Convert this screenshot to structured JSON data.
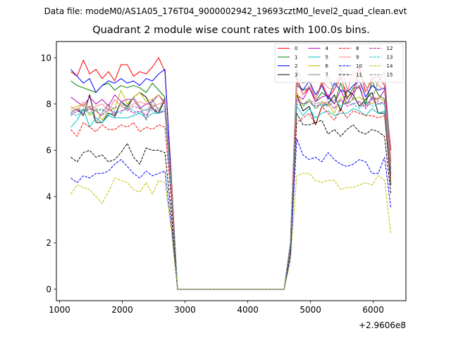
{
  "figure": {
    "suptitle": "Data file: modeM0/AS1A05_176T04_9000002942_19693cztM0_level2_quad_clean.evt"
  },
  "chart_data": {
    "type": "line",
    "title": "Quadrant 2 module wise count rates with 100.0s bins.",
    "xlabel": "",
    "ylabel": "",
    "x_offset_label": "+2.9606e8",
    "xlim": [
      950,
      6520
    ],
    "ylim": [
      -0.5,
      10.7
    ],
    "xticks": [
      1000,
      2000,
      3000,
      4000,
      5000,
      6000
    ],
    "yticks": [
      0,
      2,
      4,
      6,
      8,
      10
    ],
    "grid": false,
    "legend": {
      "placement": "top-right",
      "ncol": 4
    },
    "x_left": [
      1180,
      1280,
      1380,
      1480,
      1580,
      1680,
      1780,
      1880,
      1980,
      2080,
      2180,
      2280,
      2380,
      2480,
      2580,
      2680,
      2780,
      2880
    ],
    "x_mid": [
      2980,
      3080,
      3180,
      3280,
      3380,
      3480,
      3580,
      3680,
      3780,
      3880,
      3980,
      4080,
      4180,
      4280,
      4380,
      4480
    ],
    "x_right": [
      4580,
      4680,
      4780,
      4880,
      4980,
      5080,
      5180,
      5280,
      5380,
      5480,
      5580,
      5680,
      5780,
      5880,
      5980,
      6080,
      6180,
      6280
    ],
    "series": [
      {
        "name": "0",
        "color": "#ff0000",
        "dash": "solid",
        "left": [
          9.4,
          9.2,
          9.9,
          9.3,
          9.5,
          9.1,
          9.4,
          9.0,
          9.7,
          9.7,
          9.2,
          9.4,
          9.3,
          9.6,
          10.0,
          9.4,
          5.0,
          0.0
        ],
        "right": [
          0.0,
          2.0,
          9.2,
          8.4,
          8.7,
          8.2,
          8.9,
          8.3,
          8.6,
          9.2,
          8.3,
          8.5,
          9.6,
          8.5,
          9.1,
          9.2,
          8.8,
          6.0
        ]
      },
      {
        "name": "1",
        "color": "#008000",
        "dash": "solid",
        "left": [
          9.0,
          8.8,
          8.7,
          8.6,
          8.5,
          8.8,
          8.9,
          8.6,
          8.8,
          8.7,
          8.8,
          8.7,
          8.5,
          8.9,
          8.6,
          8.3,
          4.5,
          0.0
        ],
        "right": [
          0.0,
          2.0,
          8.8,
          8.6,
          8.7,
          8.1,
          8.5,
          8.3,
          8.0,
          8.9,
          8.2,
          8.7,
          8.7,
          8.0,
          9.0,
          8.4,
          8.2,
          5.0
        ]
      },
      {
        "name": "2",
        "color": "#0000ff",
        "dash": "solid",
        "left": [
          9.5,
          9.2,
          8.9,
          9.1,
          8.5,
          8.8,
          9.0,
          8.9,
          9.1,
          8.9,
          9.0,
          8.8,
          9.1,
          9.0,
          9.3,
          9.5,
          4.8,
          0.0
        ],
        "right": [
          0.0,
          2.0,
          8.9,
          8.6,
          9.0,
          8.4,
          8.8,
          8.2,
          8.9,
          8.6,
          8.5,
          8.8,
          9.0,
          8.3,
          8.8,
          8.6,
          8.7,
          5.5
        ]
      },
      {
        "name": "3",
        "color": "#000000",
        "dash": "solid",
        "left": [
          7.6,
          7.8,
          7.5,
          8.4,
          7.2,
          7.2,
          7.6,
          7.5,
          8.1,
          7.9,
          8.3,
          8.5,
          8.3,
          7.8,
          7.6,
          8.2,
          4.6,
          0.0
        ],
        "right": [
          0.0,
          1.9,
          8.4,
          7.7,
          7.9,
          7.1,
          7.9,
          8.0,
          8.4,
          7.7,
          8.6,
          8.4,
          7.9,
          8.2,
          8.5,
          7.6,
          7.6,
          4.5
        ]
      },
      {
        "name": "4",
        "color": "#bf00bf",
        "dash": "solid",
        "left": [
          8.3,
          8.1,
          7.9,
          8.3,
          8.0,
          8.2,
          7.9,
          8.4,
          8.1,
          8.2,
          8.2,
          7.8,
          8.0,
          8.1,
          8.4,
          8.0,
          4.6,
          0.0
        ],
        "right": [
          0.0,
          1.9,
          8.4,
          8.2,
          8.7,
          8.1,
          8.3,
          8.4,
          8.0,
          8.6,
          8.0,
          8.5,
          8.8,
          7.9,
          8.3,
          8.2,
          8.6,
          5.2
        ]
      },
      {
        "name": "5",
        "color": "#00bfbf",
        "dash": "solid",
        "left": [
          7.0,
          7.3,
          7.8,
          7.0,
          7.4,
          7.2,
          7.5,
          7.4,
          7.4,
          7.4,
          7.5,
          7.6,
          7.4,
          7.6,
          7.6,
          7.7,
          4.2,
          0.0
        ],
        "right": [
          0.0,
          1.9,
          7.9,
          7.5,
          7.8,
          7.4,
          7.6,
          7.7,
          7.5,
          7.6,
          7.6,
          7.8,
          7.7,
          7.5,
          7.8,
          7.6,
          7.7,
          4.9
        ]
      },
      {
        "name": "6",
        "color": "#bfbf00",
        "dash": "solid",
        "left": [
          7.8,
          7.9,
          8.0,
          7.5,
          7.8,
          7.3,
          7.7,
          7.8,
          8.6,
          8.0,
          8.3,
          8.5,
          8.1,
          8.2,
          8.4,
          8.1,
          4.7,
          0.0
        ],
        "right": [
          0.0,
          1.9,
          8.5,
          7.9,
          8.2,
          7.8,
          8.1,
          8.0,
          7.6,
          8.3,
          8.0,
          8.2,
          8.3,
          8.1,
          8.0,
          8.3,
          8.1,
          5.4
        ]
      },
      {
        "name": "7",
        "color": "#7f7f7f",
        "dash": "solid",
        "left": [
          7.6,
          7.8,
          7.7,
          7.9,
          7.2,
          7.6,
          8.0,
          7.4,
          8.1,
          7.8,
          8.3,
          7.9,
          7.3,
          8.2,
          7.7,
          8.3,
          4.5,
          0.0
        ],
        "right": [
          0.0,
          2.0,
          9.5,
          8.9,
          9.0,
          8.2,
          8.8,
          9.2,
          8.6,
          9.6,
          8.7,
          8.2,
          9.3,
          8.8,
          8.2,
          9.0,
          9.4,
          5.6
        ]
      },
      {
        "name": "8",
        "color": "#ff0000",
        "dash": "dashed",
        "left": [
          6.9,
          6.6,
          7.2,
          7.0,
          6.8,
          7.1,
          6.9,
          6.9,
          7.1,
          7.0,
          7.2,
          6.8,
          7.0,
          6.9,
          7.1,
          7.0,
          3.9,
          0.0
        ],
        "right": [
          0.0,
          1.8,
          7.2,
          7.4,
          7.6,
          7.1,
          7.9,
          7.6,
          7.3,
          7.8,
          7.4,
          7.7,
          7.6,
          7.5,
          7.5,
          7.4,
          7.5,
          4.7
        ]
      },
      {
        "name": "9",
        "color": "#ff7f7f",
        "dash": "solid",
        "left": [
          7.9,
          7.7,
          8.1,
          7.8,
          7.9,
          8.0,
          7.7,
          8.2,
          7.9,
          7.8,
          8.0,
          8.1,
          8.0,
          7.9,
          8.0,
          8.1,
          4.6,
          0.0
        ],
        "right": [
          0.0,
          2.0,
          9.0,
          8.4,
          8.8,
          8.2,
          9.0,
          8.7,
          8.6,
          9.1,
          8.5,
          9.4,
          9.0,
          8.5,
          9.2,
          8.8,
          8.6,
          5.3
        ]
      },
      {
        "name": "10",
        "color": "#0000ff",
        "dash": "dashed",
        "left": [
          4.8,
          4.6,
          4.9,
          4.8,
          5.0,
          5.0,
          5.1,
          5.4,
          5.6,
          5.3,
          5.0,
          4.8,
          5.1,
          4.9,
          5.0,
          5.1,
          2.8,
          0.0
        ],
        "right": [
          0.0,
          1.4,
          6.5,
          5.8,
          5.6,
          5.7,
          5.5,
          5.9,
          5.6,
          5.4,
          5.3,
          5.4,
          5.6,
          5.5,
          5.0,
          5.0,
          5.7,
          3.5
        ]
      },
      {
        "name": "11",
        "color": "#000000",
        "dash": "dashed",
        "left": [
          5.7,
          5.5,
          5.9,
          6.0,
          5.7,
          5.8,
          5.5,
          5.6,
          5.9,
          6.3,
          5.7,
          5.4,
          6.1,
          6.0,
          6.0,
          5.9,
          3.3,
          0.0
        ],
        "right": [
          0.0,
          1.6,
          7.6,
          7.1,
          7.1,
          7.2,
          7.3,
          6.7,
          6.9,
          6.6,
          6.9,
          7.1,
          6.8,
          6.7,
          6.9,
          6.8,
          6.6,
          4.1
        ]
      },
      {
        "name": "12",
        "color": "#bf00bf",
        "dash": "dashed",
        "left": [
          7.5,
          7.7,
          7.6,
          7.8,
          7.7,
          7.5,
          7.8,
          7.6,
          7.7,
          7.8,
          7.6,
          7.7,
          7.5,
          7.9,
          7.6,
          7.7,
          4.4,
          0.0
        ],
        "right": [
          0.0,
          1.9,
          8.2,
          8.0,
          8.1,
          7.9,
          8.0,
          8.1,
          7.8,
          8.2,
          7.9,
          8.0,
          8.1,
          7.8,
          8.2,
          8.0,
          8.1,
          5.0
        ]
      },
      {
        "name": "13",
        "color": "#00bfbf",
        "dash": "dashed",
        "left": [
          7.6,
          7.5,
          7.8,
          7.6,
          7.7,
          7.8,
          7.5,
          7.7,
          7.6,
          7.9,
          7.7,
          7.6,
          7.8,
          7.7,
          7.6,
          7.8,
          4.4,
          0.0
        ],
        "right": [
          0.0,
          1.9,
          8.0,
          7.9,
          8.1,
          7.8,
          8.0,
          7.9,
          8.2,
          7.9,
          8.1,
          8.0,
          7.8,
          8.1,
          7.9,
          8.0,
          8.0,
          5.1
        ]
      },
      {
        "name": "14",
        "color": "#bfbf00",
        "dash": "dashed",
        "left": [
          4.1,
          4.5,
          4.4,
          4.3,
          4.0,
          3.7,
          4.2,
          4.8,
          4.7,
          4.6,
          4.3,
          4.2,
          4.6,
          4.1,
          4.7,
          4.6,
          2.6,
          0.0
        ],
        "right": [
          0.0,
          1.2,
          4.9,
          5.0,
          5.0,
          4.7,
          4.6,
          4.7,
          4.7,
          4.3,
          4.4,
          4.4,
          4.5,
          4.6,
          4.5,
          4.9,
          4.7,
          2.4
        ]
      },
      {
        "name": "15",
        "color": "#7f7f7f",
        "dash": "dashed",
        "left": [
          7.7,
          7.8,
          7.6,
          7.9,
          7.8,
          7.7,
          7.9,
          7.8,
          8.0,
          7.7,
          7.9,
          7.8,
          7.7,
          8.0,
          7.8,
          7.9,
          4.5,
          0.0
        ],
        "right": [
          0.0,
          1.9,
          8.1,
          8.0,
          8.2,
          8.0,
          8.1,
          7.9,
          8.2,
          8.1,
          8.0,
          8.2,
          8.1,
          7.9,
          8.3,
          8.1,
          8.0,
          5.0
        ]
      }
    ]
  }
}
